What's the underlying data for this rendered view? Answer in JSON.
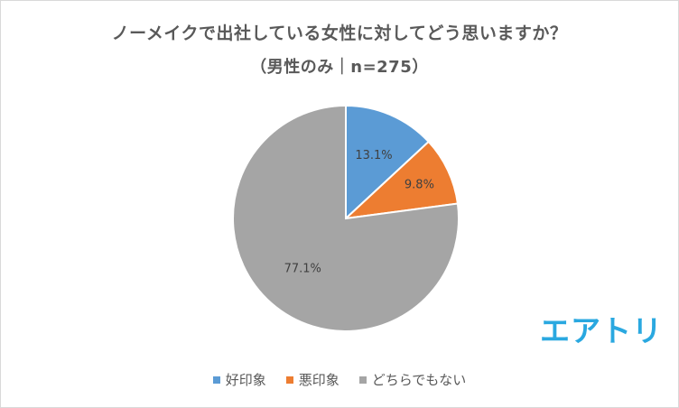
{
  "chart_data": {
    "type": "pie",
    "title": "ノーメイクで出社している女性に対してどう思いますか？",
    "subtitle": "（男性のみ｜n=275）",
    "categories": [
      "好印象",
      "悪印象",
      "どちらでもない"
    ],
    "values": [
      13.1,
      9.8,
      77.1
    ],
    "data_labels": [
      "13.1%",
      "9.8%",
      "77.1%"
    ],
    "colors": [
      "#5b9bd5",
      "#ed7d31",
      "#a5a5a5"
    ],
    "legend_position": "bottom",
    "start_angle": "12 o'clock",
    "direction": "clockwise"
  },
  "logo": {
    "text": "エアトリ",
    "color": "#2aa8e0"
  }
}
